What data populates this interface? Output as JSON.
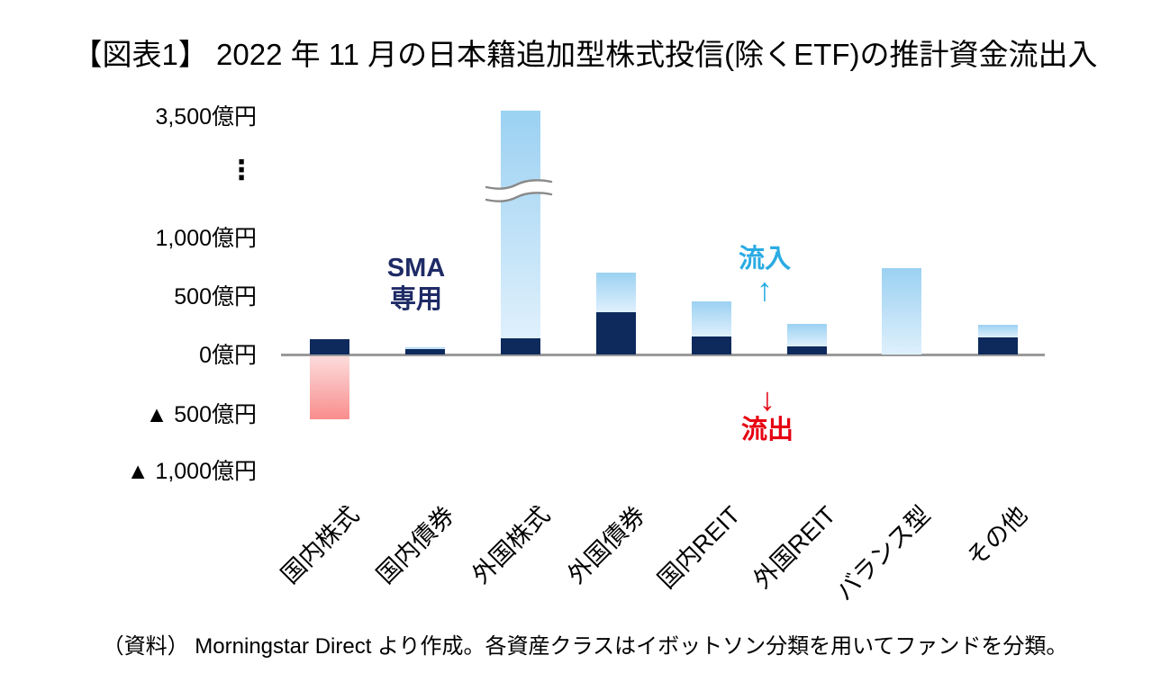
{
  "title": "【図表1】 2022 年 11 月の日本籍追加型株式投信(除くETF)の推計資金流出入",
  "source_note": "（資料） Morningstar Direct より作成。各資産クラスはイボットソン分類を用いてファンドを分類。",
  "annotations": {
    "sma_line1": "SMA",
    "sma_line2": "専用",
    "inflow_label": "流入",
    "inflow_arrow": "↑",
    "outflow_label": "流出",
    "outflow_arrow": "↓"
  },
  "colors": {
    "bar_navy": "#0e2a5c",
    "bar_light_blue_top": "#9bd1f2",
    "bar_light_blue_bottom": "#dff0fc",
    "bar_red_top": "#fcdcdc",
    "bar_red_bottom": "#f98d8d",
    "axis_gray": "#9a9a9a",
    "break_line_gray": "#8a8a8a",
    "inflow_blue": "#2aabe3",
    "outflow_red": "#e60012",
    "sma_navy": "#1e2b66"
  },
  "chart_data": {
    "type": "bar",
    "subtype": "stacked",
    "unit": "億円",
    "title": "2022年11月の日本籍追加型株式投信(除くETF)の推計資金流出入",
    "categories": [
      "国内株式",
      "国内債券",
      "外国株式",
      "外国債券",
      "国内REIT",
      "外国REIT",
      "バランス型",
      "その他"
    ],
    "series": [
      {
        "name": "流入（濃紺の下段セグメント）",
        "color": "#0e2a5c",
        "values": [
          130,
          45,
          135,
          360,
          155,
          70,
          0,
          145
        ]
      },
      {
        "name": "流入（水色の上段セグメント）",
        "color": "#9bd1f2",
        "values": [
          0,
          15,
          null,
          340,
          300,
          190,
          740,
          110
        ],
        "clipped_indices": [
          2
        ],
        "clipped_note": "外国株式の水色バーは軸の中断記号を跨いで3,500億円超まで描画（実値は目盛外）"
      },
      {
        "name": "流出（赤のマイナスセグメント）",
        "color": "#f98d8d",
        "values": [
          -540,
          0,
          0,
          0,
          0,
          0,
          0,
          0
        ]
      }
    ],
    "y_axis": {
      "unit": "億円",
      "ticks": [
        "3,500億円",
        "⋮",
        "1,000億円",
        "500億円",
        "0億円",
        "▲ 500億円",
        "▲ 1,000億円"
      ],
      "linear_range": [
        -1000,
        1000
      ],
      "axis_break": true,
      "axis_break_between": [
        "1,000億円",
        "3,500億円"
      ]
    },
    "grid": false,
    "legend": false,
    "annotations": [
      "SMA専用 (国内債券の上)",
      "流入 ↑ (外国REITの上)",
      "↓ 流出 (外国REITの下)"
    ]
  }
}
